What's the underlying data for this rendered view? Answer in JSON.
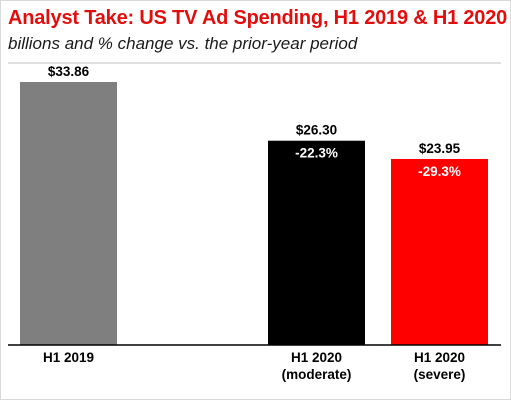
{
  "title": "Analyst Take: US TV Ad Spending, H1 2019 & H1 2020",
  "subtitle": "billions and % change vs. the prior-year period",
  "colors": {
    "title": "#e20e0e",
    "baseline": "#000000",
    "divider": "#bfbfbf"
  },
  "chart_data": {
    "type": "bar",
    "title": "Analyst Take: US TV Ad Spending, H1 2019 & H1 2020",
    "subtitle": "billions and % change vs. the prior-year period",
    "ylabel": "",
    "xlabel": "",
    "ylim": [
      0,
      33.86
    ],
    "grid": false,
    "legend": "none",
    "categories": [
      [
        "H1 2019"
      ],
      [
        "H1 2020",
        "(moderate)"
      ],
      [
        "H1 2020",
        "(severe)"
      ]
    ],
    "values": [
      33.86,
      26.3,
      23.95
    ],
    "value_labels": [
      "$33.86",
      "$26.30",
      "$23.95"
    ],
    "change_labels": [
      "",
      "-22.3%",
      "-29.3%"
    ],
    "colors": [
      "#7f7f7f",
      "#000000",
      "#ff0000"
    ],
    "change_label_color": "#ffffff"
  }
}
